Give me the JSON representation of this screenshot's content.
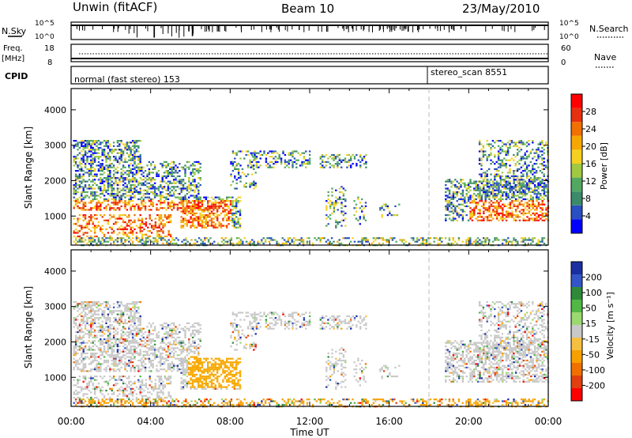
{
  "header": {
    "station": "Unwin (fitACF)",
    "beam": "Beam 10",
    "date": "23/May/2010"
  },
  "panels": {
    "nsky_label": "N.Sky",
    "nsearch_label": "N.Search",
    "freq_label_top": "Freq.",
    "freq_label_unit": "[MHz]",
    "nave_label": "Nave",
    "cpid_label": "CPID",
    "nsky_ticks": [
      "10^5",
      "10^0"
    ],
    "nsearch_ticks": [
      "10^5",
      "10^0"
    ],
    "freq_ticks": [
      "18",
      "8"
    ],
    "nave_ticks": [
      "60",
      "0"
    ],
    "cpid_left": "normal (fast stereo) 153",
    "cpid_right": "stereo_scan 8551",
    "cpid_switch_time_h": 18.0
  },
  "chart_data": [
    {
      "type": "heatmap",
      "name": "power",
      "ylabel": "Slant Range [km]",
      "xlabel": "Time UT",
      "yticks": [
        1000,
        2000,
        3000,
        4000
      ],
      "ylim": [
        180,
        4600
      ],
      "xlim": [
        0,
        24
      ],
      "xticks": [
        "00:00",
        "04:00",
        "08:00",
        "12:00",
        "16:00",
        "20:00",
        "00:00"
      ],
      "colorbar": {
        "label": "Power [dB]",
        "ticks": [
          "4",
          "8",
          "12",
          "16",
          "20",
          "24",
          "28"
        ],
        "range": [
          0,
          32
        ],
        "colors": [
          "#0000ff",
          "#2a4fc0",
          "#3b8a6a",
          "#52a860",
          "#a0c840",
          "#f5d020",
          "#f7a800",
          "#f07000",
          "#e63010",
          "#ff0000"
        ]
      }
    },
    {
      "type": "heatmap",
      "name": "velocity",
      "ylabel": "Slant Range [km]",
      "xlabel": "Time UT",
      "yticks": [
        1000,
        2000,
        3000,
        4000
      ],
      "ylim": [
        180,
        4600
      ],
      "xlim": [
        0,
        24
      ],
      "xticks": [
        "00:00",
        "04:00",
        "08:00",
        "12:00",
        "16:00",
        "20:00",
        "00:00"
      ],
      "colorbar": {
        "label": "Velocity [m s⁻¹]",
        "ticks": [
          "200",
          "100",
          "50",
          "15",
          "-15",
          "-50",
          "-100",
          "-200"
        ],
        "colors": [
          "#1a2fa0",
          "#3355c8",
          "#2e8a3a",
          "#52b845",
          "#9bd870",
          "#c8c8c8",
          "#f5c040",
          "#f7a000",
          "#f07000",
          "#e04010",
          "#ff0000"
        ]
      }
    }
  ],
  "colors": {
    "gray_scatter": "#c8c8c8",
    "orange_scatter": "#f7a800",
    "dash_line": "#bbbbbb"
  }
}
